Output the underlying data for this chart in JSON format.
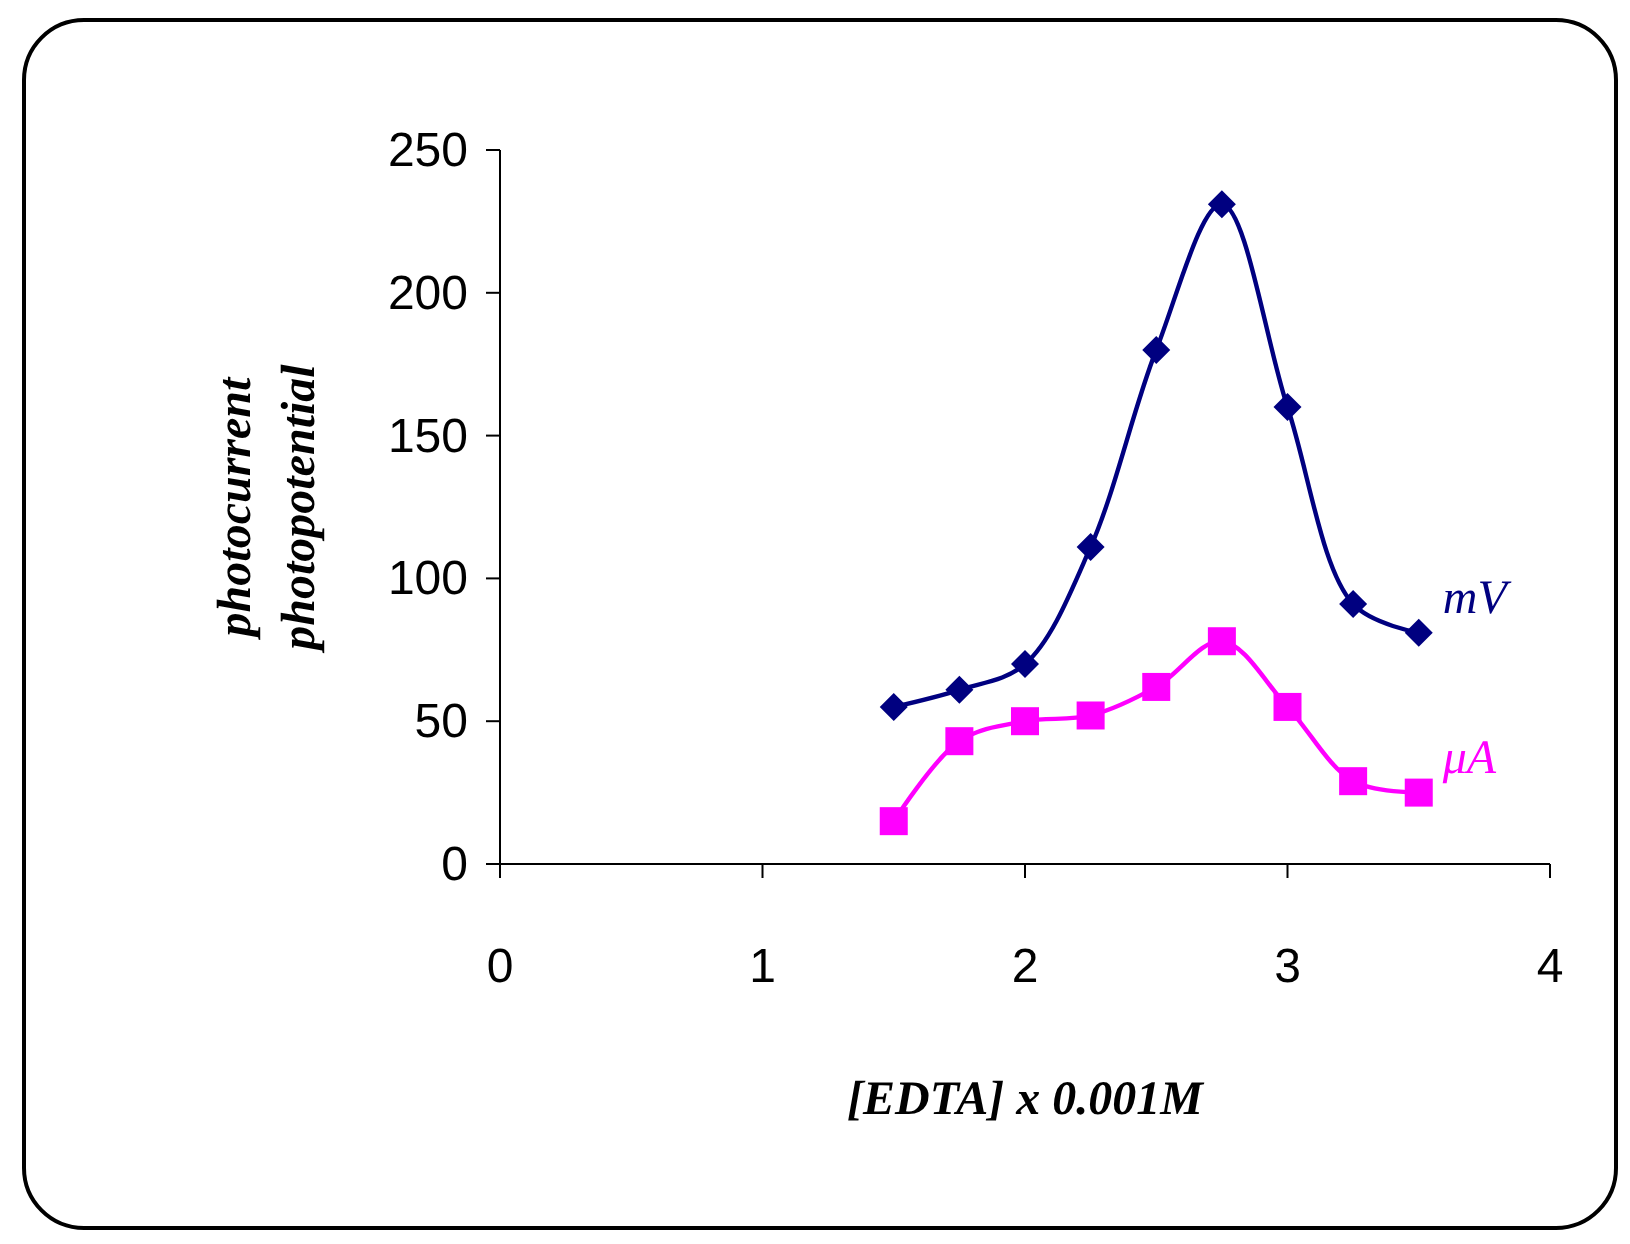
{
  "chart_data": {
    "type": "line",
    "xlabel": "[EDTA] x 0.001M",
    "ylabel": "photocurrent\nphotopotential",
    "x": [
      1.5,
      1.75,
      2.0,
      2.25,
      2.5,
      2.75,
      3.0,
      3.25,
      3.5
    ],
    "series": [
      {
        "name": "mV",
        "color": "#000080",
        "marker": "diamond",
        "values": [
          55,
          61,
          70,
          111,
          180,
          231,
          160,
          91,
          81
        ]
      },
      {
        "name": "μA",
        "color": "#ff00ff",
        "marker": "square",
        "values": [
          15,
          43,
          50,
          52,
          62,
          78,
          55,
          29,
          25
        ]
      }
    ],
    "xlim": [
      0,
      4
    ],
    "xticks": [
      0,
      1,
      2,
      3,
      4
    ],
    "ylim": [
      0,
      250
    ],
    "yticks": [
      0,
      50,
      100,
      150,
      200,
      250
    ]
  }
}
